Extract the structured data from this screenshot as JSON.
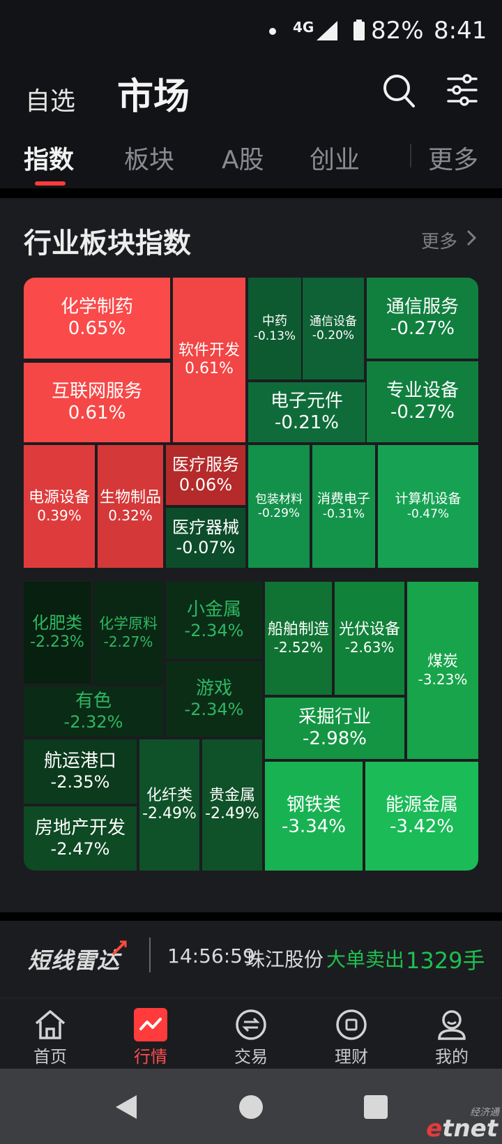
{
  "status_bar": {
    "network": "4G",
    "battery_pct": "82%",
    "time": "8:41"
  },
  "header": {
    "watchlist_label": "自选",
    "market_label": "市场",
    "icons": [
      "search-icon",
      "filter-icon"
    ]
  },
  "tabs": [
    {
      "label": "指数",
      "active": true
    },
    {
      "label": "板块",
      "active": false
    },
    {
      "label": "A股",
      "active": false
    },
    {
      "label": "创业",
      "active": false
    },
    {
      "label": "更多",
      "active": false
    }
  ],
  "sector_card": {
    "title": "行业板块指数",
    "more_label": "更多"
  },
  "treemap_tiles": [
    {
      "name": "化学制药",
      "value": "0.65%",
      "color": "#fa4a4a"
    },
    {
      "name": "互联网服务",
      "value": "0.61%",
      "color": "#f64747"
    },
    {
      "name": "软件开发",
      "value": "0.61%",
      "color": "#f24545"
    },
    {
      "name": "电源设备",
      "value": "0.39%",
      "color": "#de3c3c"
    },
    {
      "name": "生物制品",
      "value": "0.32%",
      "color": "#d43838"
    },
    {
      "name": "医疗服务",
      "value": "0.06%",
      "color": "#b52a2a"
    },
    {
      "name": "医疗器械",
      "value": "-0.07%",
      "color": "#0c4c2a"
    },
    {
      "name": "中药",
      "value": "-0.13%",
      "color": "#0d5a31"
    },
    {
      "name": "通信设备",
      "value": "-0.20%",
      "color": "#0e6235"
    },
    {
      "name": "通信服务",
      "value": "-0.27%",
      "color": "#11803f"
    },
    {
      "name": "专业设备",
      "value": "-0.27%",
      "color": "#11803f"
    },
    {
      "name": "电子元件",
      "value": "-0.21%",
      "color": "#0f6c3a"
    },
    {
      "name": "包装材料",
      "value": "-0.29%",
      "color": "#13904a"
    },
    {
      "name": "消费电子",
      "value": "-0.31%",
      "color": "#14944b"
    },
    {
      "name": "计算机设备",
      "value": "-0.47%",
      "color": "#16a252"
    },
    {
      "name": "化肥类",
      "value": "-2.23%",
      "color": "#08200f"
    },
    {
      "name": "化学原料",
      "value": "-2.27%",
      "color": "#0a2713"
    },
    {
      "name": "小金属",
      "value": "-2.34%",
      "color": "#0b2d16"
    },
    {
      "name": "游戏",
      "value": "-2.34%",
      "color": "#0b2d16"
    },
    {
      "name": "有色",
      "value": "-2.32%",
      "color": "#0a2b15"
    },
    {
      "name": "航运港口",
      "value": "-2.35%",
      "color": "#0c3a1c"
    },
    {
      "name": "房地产开发",
      "value": "-2.47%",
      "color": "#0e4a24"
    },
    {
      "name": "化纤类",
      "value": "-2.49%",
      "color": "#0f5128"
    },
    {
      "name": "贵金属",
      "value": "-2.49%",
      "color": "#0f5128"
    },
    {
      "name": "船舶制造",
      "value": "-2.52%",
      "color": "#107333"
    },
    {
      "name": "光伏设备",
      "value": "-2.63%",
      "color": "#118239"
    },
    {
      "name": "煤炭",
      "value": "-3.23%",
      "color": "#17a44a"
    },
    {
      "name": "采掘行业",
      "value": "-2.98%",
      "color": "#139544"
    },
    {
      "name": "钢铁类",
      "value": "-3.34%",
      "color": "#19b253"
    },
    {
      "name": "能源金属",
      "value": "-3.42%",
      "color": "#1bbb58"
    }
  ],
  "radar": {
    "logo": "短线雷达",
    "time": "14:56:59",
    "stock": "珠江股份",
    "action": "大单卖出",
    "volume": "1329手"
  },
  "bottom_nav": [
    {
      "label": "首页",
      "icon": "home-icon",
      "active": false
    },
    {
      "label": "行情",
      "icon": "chart-icon",
      "active": true
    },
    {
      "label": "交易",
      "icon": "exchange-icon",
      "active": false
    },
    {
      "label": "理财",
      "icon": "wealth-icon",
      "active": false
    },
    {
      "label": "我的",
      "icon": "profile-icon",
      "active": false
    }
  ],
  "watermark": {
    "top": "经济通",
    "brand": "etnet"
  },
  "colors": {
    "up": "#fa4a4a",
    "down": "#1bbb58",
    "accent": "#ff3b3b"
  }
}
